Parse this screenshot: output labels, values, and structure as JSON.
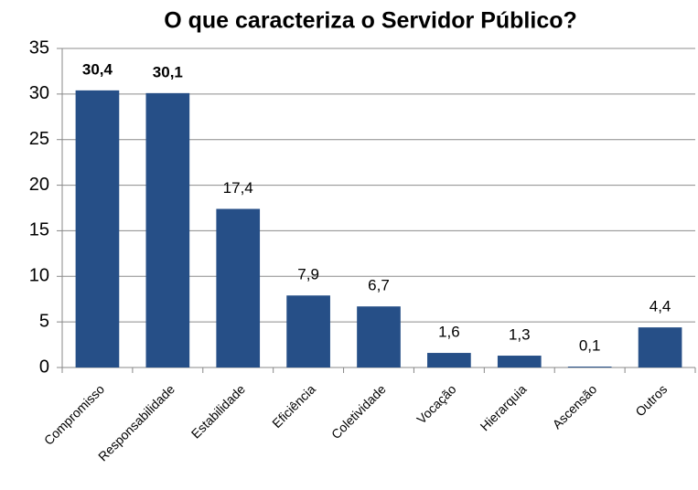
{
  "chart_data": {
    "type": "bar",
    "title": "O que caracteriza o Servidor Público?",
    "categories": [
      "Compromisso",
      "Responsabilidade",
      "Estabilidade",
      "Eficiência",
      "Coletividade",
      "Vocação",
      "Hierarquia",
      "Ascensão",
      "Outros"
    ],
    "values": [
      30.4,
      30.1,
      17.4,
      7.9,
      6.7,
      1.6,
      1.3,
      0.1,
      4.4
    ],
    "value_labels": [
      "30,4",
      "30,1",
      "17,4",
      "7,9",
      "6,7",
      "1,6",
      "1,3",
      "0,1",
      "4,4"
    ],
    "color": "#264f87",
    "ylim": [
      0,
      35
    ],
    "yticks": [
      0,
      5,
      10,
      15,
      20,
      25,
      30,
      35
    ],
    "grid": true
  }
}
